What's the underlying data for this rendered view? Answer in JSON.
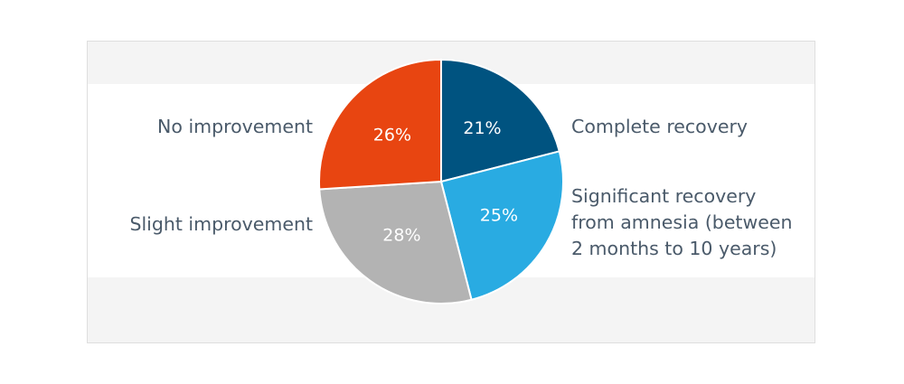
{
  "chart_data": {
    "type": "pie",
    "title": "",
    "legend": "none",
    "slices": [
      {
        "label": "Complete recovery",
        "lines": [
          "Complete recovery"
        ],
        "value": 21,
        "display": "21%",
        "color": "#005380"
      },
      {
        "label": "Significant recovery from amnesia (between 2 months to 10 years)",
        "lines": [
          "Significant recovery",
          "from amnesia (between",
          "2 months to 10 years)"
        ],
        "value": 25,
        "display": "25%",
        "color": "#29abe2"
      },
      {
        "label": "Slight improvement",
        "lines": [
          "Slight improvement"
        ],
        "value": 28,
        "display": "28%",
        "color": "#b3b3b3"
      },
      {
        "label": "No improvement",
        "lines": [
          "No improvement"
        ],
        "value": 26,
        "display": "26%",
        "color": "#e84511"
      }
    ]
  }
}
